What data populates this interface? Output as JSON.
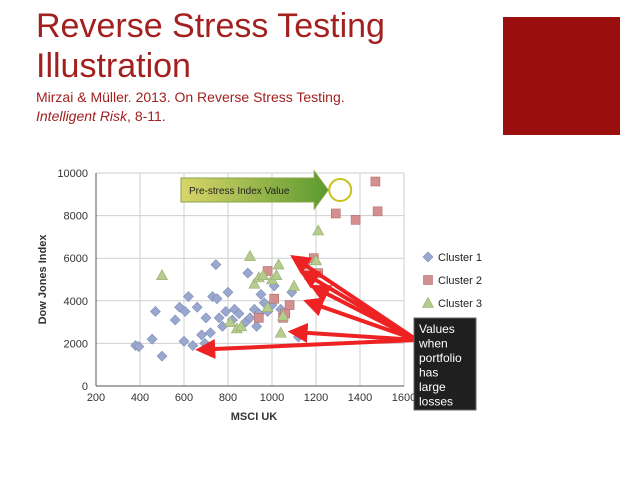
{
  "slide": {
    "title_line1": "Reverse Stress Testing",
    "title_line2": "Illustration",
    "citation_line1": "Mirzai & Müller. 2013.  On Reverse Stress Testing.",
    "citation_italic": "Intelligent Risk",
    "citation_rest": ", 8-11.",
    "accent_color": "#9b0e0e"
  },
  "chart_data": {
    "type": "scatter",
    "xlabel": "MSCI UK",
    "ylabel": "Dow Jones Index",
    "xlim": [
      200,
      1600
    ],
    "ylim": [
      0,
      10000
    ],
    "xticks": [
      200,
      400,
      600,
      800,
      1000,
      1200,
      1400,
      1600
    ],
    "yticks": [
      0,
      2000,
      4000,
      6000,
      8000,
      10000
    ],
    "xtick_labels": [
      "200",
      "400",
      "600",
      "800",
      "1000",
      "1200",
      "1400",
      "1600"
    ],
    "ytick_labels": [
      "0",
      "2000",
      "4000",
      "6000",
      "8000",
      "10000"
    ],
    "grid": true,
    "legend_position": "right",
    "series": [
      {
        "name": "Cluster 1",
        "marker": "diamond",
        "color": "#9aa8cf",
        "points": [
          [
            380,
            1900
          ],
          [
            395,
            1850
          ],
          [
            455,
            2200
          ],
          [
            470,
            3500
          ],
          [
            500,
            1400
          ],
          [
            560,
            3100
          ],
          [
            580,
            3700
          ],
          [
            600,
            2100
          ],
          [
            605,
            3500
          ],
          [
            620,
            4200
          ],
          [
            640,
            1900
          ],
          [
            660,
            3700
          ],
          [
            680,
            2400
          ],
          [
            695,
            2000
          ],
          [
            700,
            3200
          ],
          [
            710,
            1800
          ],
          [
            720,
            2500
          ],
          [
            730,
            4200
          ],
          [
            745,
            5700
          ],
          [
            750,
            4100
          ],
          [
            760,
            3200
          ],
          [
            775,
            2800
          ],
          [
            790,
            3500
          ],
          [
            800,
            4400
          ],
          [
            820,
            3100
          ],
          [
            830,
            3600
          ],
          [
            850,
            3400
          ],
          [
            880,
            3000
          ],
          [
            890,
            5300
          ],
          [
            900,
            3200
          ],
          [
            920,
            3600
          ],
          [
            930,
            2800
          ],
          [
            940,
            3400
          ],
          [
            950,
            4300
          ],
          [
            965,
            3900
          ],
          [
            980,
            3500
          ],
          [
            1000,
            3800
          ],
          [
            1010,
            4700
          ],
          [
            1040,
            3600
          ],
          [
            1060,
            3400
          ],
          [
            1090,
            4400
          ],
          [
            1120,
            2300
          ]
        ]
      },
      {
        "name": "Cluster 2",
        "marker": "square",
        "color": "#d48f8f",
        "points": [
          [
            940,
            3200
          ],
          [
            980,
            5400
          ],
          [
            1010,
            4100
          ],
          [
            1050,
            3200
          ],
          [
            1060,
            3400
          ],
          [
            1080,
            3800
          ],
          [
            1150,
            5700
          ],
          [
            1170,
            5200
          ],
          [
            1190,
            6000
          ],
          [
            1210,
            5300
          ],
          [
            1290,
            8100
          ],
          [
            1380,
            7800
          ],
          [
            1470,
            9600
          ],
          [
            1480,
            8200
          ]
        ]
      },
      {
        "name": "Cluster 3",
        "marker": "triangle",
        "color": "#b5cc8e",
        "points": [
          [
            500,
            5200
          ],
          [
            810,
            3000
          ],
          [
            840,
            2700
          ],
          [
            860,
            2800
          ],
          [
            900,
            6100
          ],
          [
            920,
            4800
          ],
          [
            940,
            5100
          ],
          [
            960,
            5200
          ],
          [
            980,
            3700
          ],
          [
            1000,
            5000
          ],
          [
            1020,
            5200
          ],
          [
            1030,
            5700
          ],
          [
            1040,
            2500
          ],
          [
            1050,
            3300
          ],
          [
            1100,
            4700
          ],
          [
            1200,
            5900
          ],
          [
            1210,
            7300
          ]
        ]
      }
    ],
    "annotations": {
      "pre_stress_label": "Pre-stress Index Value",
      "pre_stress_point": [
        1310,
        9200
      ],
      "callout_lines": [
        "Values",
        "when",
        "portfolio",
        "has",
        "large",
        "losses"
      ],
      "loss_targets": [
        [
          1090,
          6100
        ],
        [
          1130,
          5400
        ],
        [
          1180,
          4700
        ],
        [
          1150,
          4000
        ],
        [
          1080,
          2550
        ],
        [
          660,
          1700
        ]
      ]
    }
  }
}
